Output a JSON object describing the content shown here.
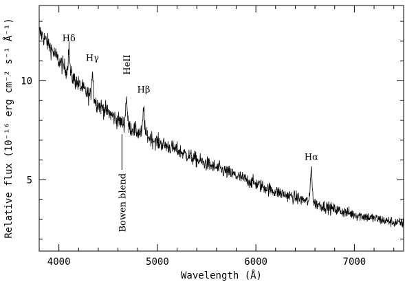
{
  "chart_data": {
    "type": "line",
    "xlabel": "Wavelength (Å)",
    "ylabel": "Relative flux (10⁻¹⁶ erg cm⁻² s⁻¹ Å⁻¹)",
    "xlim": [
      3800,
      7500
    ],
    "ylim": [
      1.4,
      13.8
    ],
    "x_ticks": [
      4000,
      5000,
      6000,
      7000
    ],
    "x_tick_labels": [
      "4000",
      "5000",
      "6000",
      "7000"
    ],
    "y_ticks": [
      5,
      10
    ],
    "y_tick_labels": [
      "5",
      "10"
    ],
    "grid": false,
    "series": [
      {
        "continuum_x": [
          3800,
          3900,
          4000,
          4100,
          4200,
          4300,
          4400,
          4500,
          4600,
          4700,
          4800,
          4900,
          5000,
          5200,
          5400,
          5600,
          5800,
          6000,
          6200,
          6400,
          6600,
          6800,
          7000,
          7200,
          7400,
          7500
        ],
        "continuum_y": [
          12.5,
          11.8,
          11.0,
          10.4,
          9.8,
          9.3,
          8.8,
          8.4,
          8.0,
          7.7,
          7.4,
          7.2,
          6.9,
          6.5,
          6.0,
          5.6,
          5.2,
          4.8,
          4.4,
          4.1,
          3.8,
          3.5,
          3.25,
          3.05,
          2.85,
          2.8
        ],
        "noise_sigma_blue": 0.45,
        "noise_sigma_red": 0.25
      }
    ],
    "emission_lines": [
      {
        "label": "Hδ",
        "x": 4102,
        "peak": 11.6
      },
      {
        "label": "Hγ",
        "x": 4340,
        "peak": 10.5
      },
      {
        "label": "HeII",
        "x": 4686,
        "peak": 9.2
      },
      {
        "label": "Hβ",
        "x": 4861,
        "peak": 8.6
      },
      {
        "label": "Hα",
        "x": 6563,
        "peak": 5.6
      }
    ],
    "annotations": [
      {
        "text": "Hδ",
        "x": 4102,
        "y": 12.0
      },
      {
        "text": "Hγ",
        "x": 4340,
        "y": 11.0
      },
      {
        "text": "HeII",
        "x": 4686,
        "y": 10.3
      },
      {
        "text": "Hβ",
        "x": 4861,
        "y": 9.4
      },
      {
        "text": "Hα",
        "x": 6563,
        "y": 6.0
      },
      {
        "text": "Bowen blend",
        "x": 4640,
        "y_top": 7.3,
        "y_bottom": 5.5,
        "vertical": true
      }
    ]
  }
}
